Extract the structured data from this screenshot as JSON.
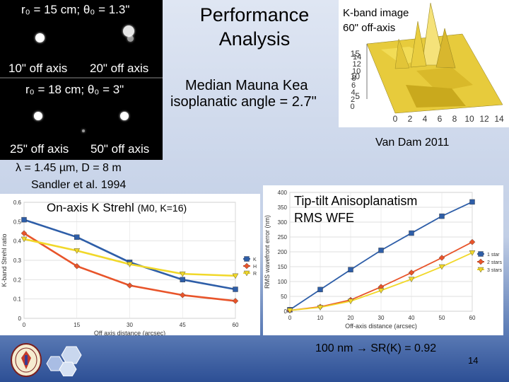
{
  "slide": {
    "title": "Performance Analysis",
    "page_number": "14",
    "colors": {
      "background_top": "#dfe6f3",
      "background_bottom": "#2d4f95"
    }
  },
  "speckle_images": {
    "top_label": "r₀ = 15 cm; θ₀ = 1.3\"",
    "bottom_label": "r₀ = 18 cm; θ₀ = 3\"",
    "captions": [
      "10\" off axis",
      "20\" off axis",
      "25\" off axis",
      "50\" off axis"
    ]
  },
  "kband": {
    "label_line1": "K-band image",
    "label_line2": "60\" off-axis",
    "z_ticks": [
      "15",
      "10",
      "5"
    ],
    "y_ticks": [
      "14",
      "12",
      "10",
      "8",
      "6",
      "4",
      "2",
      "0"
    ],
    "x_ticks": [
      "0",
      "2",
      "4",
      "6",
      "8",
      "10",
      "12",
      "14"
    ]
  },
  "texts": {
    "median_line1": "Median Mauna Kea",
    "median_line2": "isoplanatic angle = 2.7\"",
    "citation1": "Van Dam 2011",
    "params": "λ = 1.45 µm, D = 8 m",
    "citation2": "Sandler et al. 1994",
    "strehl_label_main": "On-axis K Strehl",
    "strehl_label_sub": "(M0, K=16)",
    "tiptilt_line1": "Tip-tilt Anisoplanatism",
    "tiptilt_line2": "RMS WFE",
    "conclusion": "100 nm → SR(K) = 0.92"
  },
  "chart_data": [
    {
      "type": "line",
      "xlabel": "Off axis distance (arcsec)",
      "ylabel": "K-band Strehl ratio",
      "xlim": [
        0,
        60
      ],
      "ylim": [
        0,
        0.6
      ],
      "x_ticks": [
        "0",
        "15",
        "30",
        "45",
        "60"
      ],
      "y_ticks": [
        "0",
        "0.1",
        "0.2",
        "0.3",
        "0.4",
        "0.5",
        "0.6"
      ],
      "grid": true,
      "legend_position": "right",
      "x": [
        0,
        15,
        30,
        45,
        60
      ],
      "series": [
        {
          "name": "K",
          "values": [
            0.51,
            0.42,
            0.29,
            0.2,
            0.15
          ],
          "color": "#2e5ea8",
          "marker": "square"
        },
        {
          "name": "H",
          "values": [
            0.44,
            0.27,
            0.17,
            0.12,
            0.09
          ],
          "color": "#e8542a",
          "marker": "diamond"
        },
        {
          "name": "R",
          "values": [
            0.41,
            0.35,
            0.28,
            0.23,
            0.22
          ],
          "color": "#f1d82a",
          "marker": "triangle"
        }
      ]
    },
    {
      "type": "line",
      "xlabel": "Off-axis distance (arcsec)",
      "ylabel": "RMS wavefront error (nm)",
      "xlim": [
        0,
        60
      ],
      "ylim": [
        0,
        400
      ],
      "x_ticks": [
        "0",
        "10",
        "20",
        "30",
        "40",
        "50",
        "60"
      ],
      "y_ticks": [
        "0",
        "50",
        "100",
        "150",
        "200",
        "250",
        "300",
        "350",
        "400"
      ],
      "grid": true,
      "legend_position": "right",
      "x": [
        0,
        10,
        20,
        30,
        40,
        50,
        60
      ],
      "series": [
        {
          "name": "1 star",
          "values": [
            5,
            73,
            140,
            205,
            263,
            320,
            368
          ],
          "color": "#2e5ea8",
          "marker": "square"
        },
        {
          "name": "2 stars",
          "values": [
            3,
            15,
            38,
            82,
            130,
            180,
            233
          ],
          "color": "#e8542a",
          "marker": "diamond"
        },
        {
          "name": "3 stars",
          "values": [
            3,
            13,
            34,
            70,
            108,
            150,
            197
          ],
          "color": "#f1d82a",
          "marker": "triangle"
        }
      ]
    }
  ]
}
